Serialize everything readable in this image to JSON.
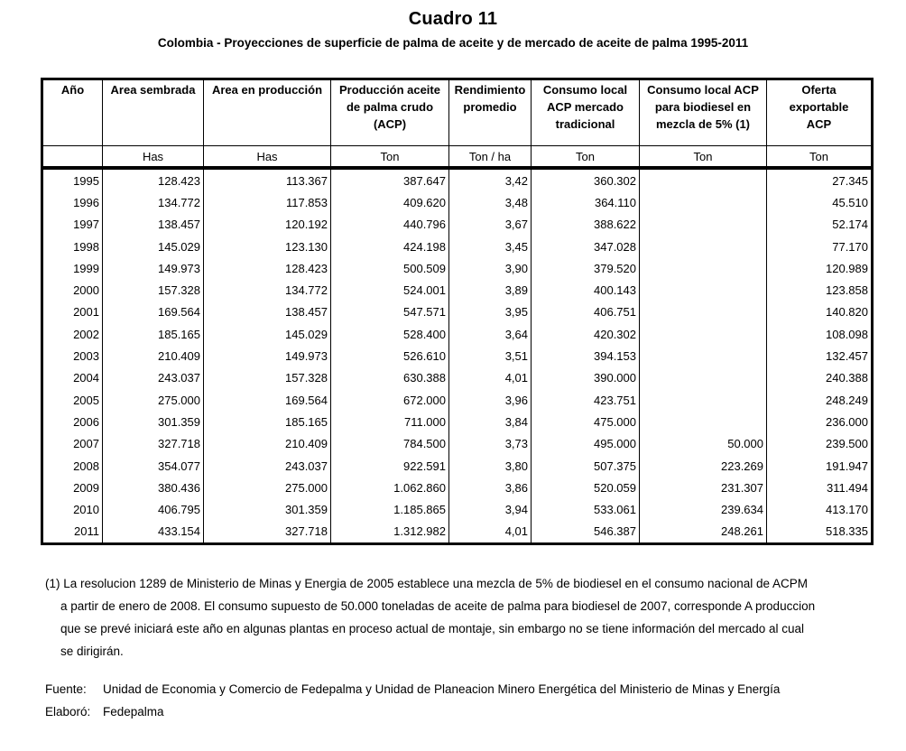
{
  "title": "Cuadro 11",
  "subtitle": "Colombia - Proyecciones de superficie de palma de aceite y de mercado de aceite de palma 1995-2011",
  "table": {
    "columns": [
      {
        "label": "Año",
        "unit": ""
      },
      {
        "label": "Area sembrada",
        "unit": "Has"
      },
      {
        "label": "Area en producción",
        "unit": "Has"
      },
      {
        "label": "Producción aceite\nde palma crudo\n(ACP)",
        "unit": "Ton"
      },
      {
        "label": "Rendimiento\npromedio",
        "unit": "Ton / ha"
      },
      {
        "label": "Consumo local\nACP mercado\ntradicional",
        "unit": "Ton"
      },
      {
        "label": "Consumo local ACP\npara biodiesel en\nmezcla de 5% (1)",
        "unit": "Ton"
      },
      {
        "label": "Oferta\nexportable\nACP",
        "unit": "Ton"
      }
    ],
    "rows": [
      [
        "1995",
        "128.423",
        "113.367",
        "387.647",
        "3,42",
        "360.302",
        "",
        "27.345"
      ],
      [
        "1996",
        "134.772",
        "117.853",
        "409.620",
        "3,48",
        "364.110",
        "",
        "45.510"
      ],
      [
        "1997",
        "138.457",
        "120.192",
        "440.796",
        "3,67",
        "388.622",
        "",
        "52.174"
      ],
      [
        "1998",
        "145.029",
        "123.130",
        "424.198",
        "3,45",
        "347.028",
        "",
        "77.170"
      ],
      [
        "1999",
        "149.973",
        "128.423",
        "500.509",
        "3,90",
        "379.520",
        "",
        "120.989"
      ],
      [
        "2000",
        "157.328",
        "134.772",
        "524.001",
        "3,89",
        "400.143",
        "",
        "123.858"
      ],
      [
        "2001",
        "169.564",
        "138.457",
        "547.571",
        "3,95",
        "406.751",
        "",
        "140.820"
      ],
      [
        "2002",
        "185.165",
        "145.029",
        "528.400",
        "3,64",
        "420.302",
        "",
        "108.098"
      ],
      [
        "2003",
        "210.409",
        "149.973",
        "526.610",
        "3,51",
        "394.153",
        "",
        "132.457"
      ],
      [
        "2004",
        "243.037",
        "157.328",
        "630.388",
        "4,01",
        "390.000",
        "",
        "240.388"
      ],
      [
        "2005",
        "275.000",
        "169.564",
        "672.000",
        "3,96",
        "423.751",
        "",
        "248.249"
      ],
      [
        "2006",
        "301.359",
        "185.165",
        "711.000",
        "3,84",
        "475.000",
        "",
        "236.000"
      ],
      [
        "2007",
        "327.718",
        "210.409",
        "784.500",
        "3,73",
        "495.000",
        "50.000",
        "239.500"
      ],
      [
        "2008",
        "354.077",
        "243.037",
        "922.591",
        "3,80",
        "507.375",
        "223.269",
        "191.947"
      ],
      [
        "2009",
        "380.436",
        "275.000",
        "1.062.860",
        "3,86",
        "520.059",
        "231.307",
        "311.494"
      ],
      [
        "2010",
        "406.795",
        "301.359",
        "1.185.865",
        "3,94",
        "533.061",
        "239.634",
        "413.170"
      ],
      [
        "2011",
        "433.154",
        "327.718",
        "1.312.982",
        "4,01",
        "546.387",
        "248.261",
        "518.335"
      ]
    ]
  },
  "footnote": {
    "lines": [
      "(1) La resolucion 1289 de Ministerio de Minas y Energia de 2005 establece una mezcla de 5% de biodiesel en el consumo nacional de ACPM",
      "a partir de enero de 2008. El consumo supuesto de 50.000 toneladas de aceite de palma para biodiesel de 2007, corresponde A produccion",
      "que se prevé iniciará este año en algunas plantas en proceso actual de montaje, sin embargo no se tiene información del mercado al cual",
      "se dirigirán."
    ]
  },
  "source": {
    "label": "Fuente:",
    "text": "Unidad de Economia y Comercio de Fedepalma y Unidad de Planeacion Minero Energética del Ministerio de Minas y Energía"
  },
  "elaborated": {
    "label": "Elaboró:",
    "text": "Fedepalma"
  }
}
